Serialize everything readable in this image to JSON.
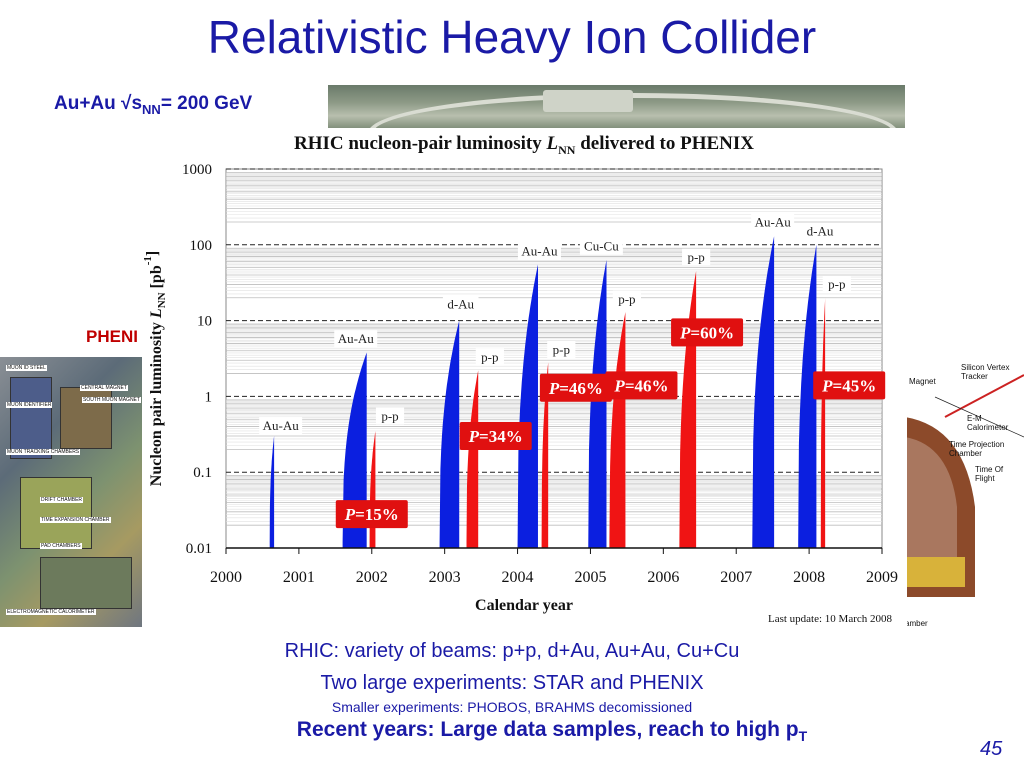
{
  "slide": {
    "title": "Relativistic Heavy Ion Collider",
    "beam_prefix": "Au+Au √s",
    "beam_sub": "NN",
    "beam_suffix": "= 200 GeV",
    "phenix_partial": "PHENIX",
    "captions": {
      "line1": "RHIC: variety of beams: p+p, d+Au, Au+Au, Cu+Cu",
      "line2": "Two large experiments: STAR and PHENIX",
      "line3": "Smaller experiments: PHOBOS, BRAHMS decomissioned",
      "line4_main": "Recent years: Large data samples, reach to high p",
      "line4_sub": "T"
    },
    "page_number": "45"
  },
  "left_detector_labels": [
    "MUON ID STEEL",
    "MUON IDENTIFIER",
    "CENTRAL MAGNET",
    "SOUTH MUON MAGNET",
    "MUON TRACKING CHAMBERS",
    "DRIFT CHAMBER",
    "TIME EXPANSION CHAMBER",
    "PAD CHAMBERS",
    "ELECTROMAGNETIC CALORIMETER"
  ],
  "right_detector_labels": [
    "Silicon Vertex Tracker",
    "Magnet",
    "E-M Calorimeter",
    "Time Projection Chamber",
    "Time Of Flight",
    "amber"
  ],
  "colors": {
    "blue_series": "#0b1fe0",
    "red_series": "#f01414",
    "label_box": "#e01010",
    "caption_blue": "#1a1aa6"
  },
  "chart_data": {
    "type": "area",
    "title_prefix": "RHIC nucleon-pair luminosity ",
    "title_var": "L",
    "title_var_sub": "NN",
    "title_suffix": " delivered to PHENIX",
    "xlabel": "Calendar year",
    "ylabel": "Nucleon pair luminosity L_NN [pb⁻¹]",
    "ylabel_main": "Nucleon pair luminosity ",
    "ylabel_var": "L",
    "ylabel_var_sub": "NN",
    "ylabel_unit": " [pb",
    "ylabel_unit_sup": "-1",
    "ylabel_close": "]",
    "yscale": "log",
    "ylim": [
      0.01,
      1000
    ],
    "xlim": [
      2000,
      2009
    ],
    "x_ticks": [
      "2000",
      "2001",
      "2002",
      "2003",
      "2004",
      "2005",
      "2006",
      "2007",
      "2008",
      "2009"
    ],
    "y_ticks": [
      {
        "value": 0.01,
        "label": "0.01"
      },
      {
        "value": 0.1,
        "label": "0.1"
      },
      {
        "value": 1,
        "label": "1"
      },
      {
        "value": 10,
        "label": "10"
      },
      {
        "value": 100,
        "label": "100"
      },
      {
        "value": 1000,
        "label": "1000"
      }
    ],
    "grid": true,
    "footnote": "Last update: 10 March 2008",
    "runs": [
      {
        "species": "Au-Au",
        "color": "blue",
        "start": 2000.6,
        "end": 2000.66,
        "peak": 0.3
      },
      {
        "species": "Au-Au",
        "color": "blue",
        "start": 2001.6,
        "end": 2001.93,
        "peak": 3.8
      },
      {
        "species": "p-p",
        "color": "red",
        "start": 2001.97,
        "end": 2002.05,
        "peak": 0.35
      },
      {
        "species": "d-Au",
        "color": "blue",
        "start": 2002.93,
        "end": 2003.2,
        "peak": 10
      },
      {
        "species": "p-p",
        "color": "red",
        "start": 2003.3,
        "end": 2003.46,
        "peak": 2.2
      },
      {
        "species": "Au-Au",
        "color": "blue",
        "start": 2004.0,
        "end": 2004.28,
        "peak": 55
      },
      {
        "species": "p-p",
        "color": "red",
        "start": 2004.33,
        "end": 2004.42,
        "peak": 2.8
      },
      {
        "species": "Cu-Cu",
        "color": "blue",
        "start": 2004.97,
        "end": 2005.22,
        "peak": 63
      },
      {
        "species": "p-p",
        "color": "red",
        "start": 2005.26,
        "end": 2005.48,
        "peak": 13
      },
      {
        "species": "p-p",
        "color": "red",
        "start": 2006.22,
        "end": 2006.45,
        "peak": 45
      },
      {
        "species": "Au-Au",
        "color": "blue",
        "start": 2007.22,
        "end": 2007.52,
        "peak": 130
      },
      {
        "species": "d-Au",
        "color": "blue",
        "start": 2007.85,
        "end": 2008.1,
        "peak": 100
      },
      {
        "species": "p-p",
        "color": "red",
        "start": 2008.16,
        "end": 2008.22,
        "peak": 20
      }
    ],
    "species_labels": [
      {
        "text": "Au-Au",
        "x": 2000.75,
        "y": 0.3
      },
      {
        "text": "Au-Au",
        "x": 2001.78,
        "y": 4.2
      },
      {
        "text": "p-p",
        "x": 2002.25,
        "y": 0.4
      },
      {
        "text": "d-Au",
        "x": 2003.22,
        "y": 12
      },
      {
        "text": "p-p",
        "x": 2003.62,
        "y": 2.4
      },
      {
        "text": "Au-Au",
        "x": 2004.3,
        "y": 60
      },
      {
        "text": "p-p",
        "x": 2004.6,
        "y": 3.0
      },
      {
        "text": "Cu-Cu",
        "x": 2005.15,
        "y": 70
      },
      {
        "text": "p-p",
        "x": 2005.5,
        "y": 14
      },
      {
        "text": "p-p",
        "x": 2006.45,
        "y": 50
      },
      {
        "text": "Au-Au",
        "x": 2007.5,
        "y": 145
      },
      {
        "text": "d-Au",
        "x": 2008.15,
        "y": 110
      },
      {
        "text": "p-p",
        "x": 2008.38,
        "y": 22
      }
    ],
    "polarization_labels": [
      {
        "text": "=15%",
        "x": 2002.0,
        "y": 0.028
      },
      {
        "text": "=34%",
        "x": 2003.7,
        "y": 0.3
      },
      {
        "text": "=46%",
        "x": 2004.8,
        "y": 1.3
      },
      {
        "text": "=46%",
        "x": 2005.7,
        "y": 1.4
      },
      {
        "text": "=60%",
        "x": 2006.6,
        "y": 7
      },
      {
        "text": "=45%",
        "x": 2008.55,
        "y": 1.4
      }
    ]
  }
}
